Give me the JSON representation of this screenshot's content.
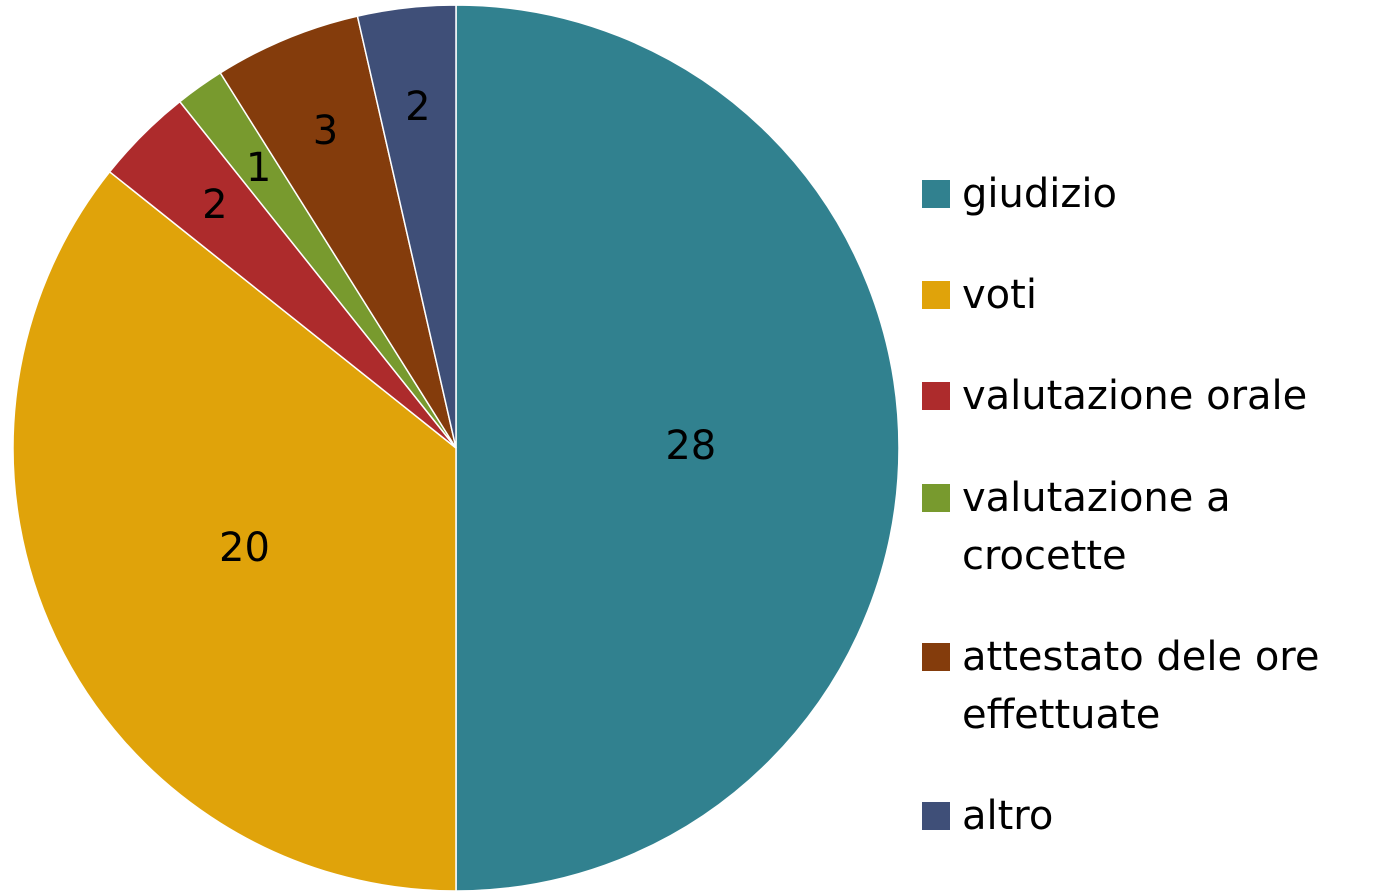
{
  "chart_data": {
    "type": "pie",
    "categories": [
      "giudizio",
      "voti",
      "valutazione orale",
      "valutazione a crocette",
      "attestato dele ore effettuate",
      "altro"
    ],
    "values": [
      28,
      20,
      2,
      1,
      3,
      2
    ],
    "colors": [
      "#31818f",
      "#e0a30a",
      "#ad2b2c",
      "#789a2e",
      "#843c0c",
      "#3f4f78"
    ],
    "legend": "right"
  }
}
